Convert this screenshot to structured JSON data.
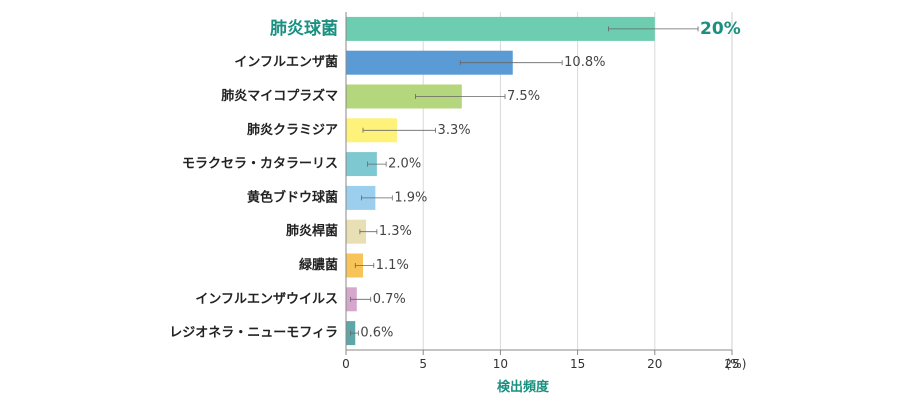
{
  "chart_data": {
    "type": "bar",
    "orientation": "horizontal",
    "categories": [
      "肺炎球菌",
      "インフルエンザ菌",
      "肺炎マイコプラズマ",
      "肺炎クラミジア",
      "モラクセラ・カタラーリス",
      "黄色ブドウ球菌",
      "肺炎桿菌",
      "緑膿菌",
      "インフルエンザウイルス",
      "レジオネラ・ニューモフィラ"
    ],
    "values": [
      20,
      10.8,
      7.5,
      3.3,
      2.0,
      1.9,
      1.3,
      1.1,
      0.7,
      0.6
    ],
    "value_labels": [
      "20%",
      "10.8%",
      "7.5%",
      "3.3%",
      "2.0%",
      "1.9%",
      "1.3%",
      "1.1%",
      "0.7%",
      "0.6%"
    ],
    "error_low": [
      17,
      7.4,
      4.5,
      1.1,
      1.4,
      1.0,
      0.9,
      0.6,
      0.3,
      0.3
    ],
    "error_high": [
      22.8,
      14,
      10.3,
      5.8,
      2.6,
      3.0,
      2.0,
      1.8,
      1.6,
      0.8
    ],
    "colors": [
      "#6dcdb0",
      "#5b9bd5",
      "#b4d67c",
      "#fff27a",
      "#7ec8d1",
      "#9ccfee",
      "#e8e0b4",
      "#f7c45a",
      "#d6a7cc",
      "#5ea6a8"
    ],
    "highlight_color": "#1a9080",
    "xlim": [
      0,
      25
    ],
    "xticks": [
      0,
      5,
      10,
      15,
      20,
      25
    ],
    "x_unit": "(%)",
    "xlabel": "検出頻度",
    "grid": true,
    "title": ""
  }
}
